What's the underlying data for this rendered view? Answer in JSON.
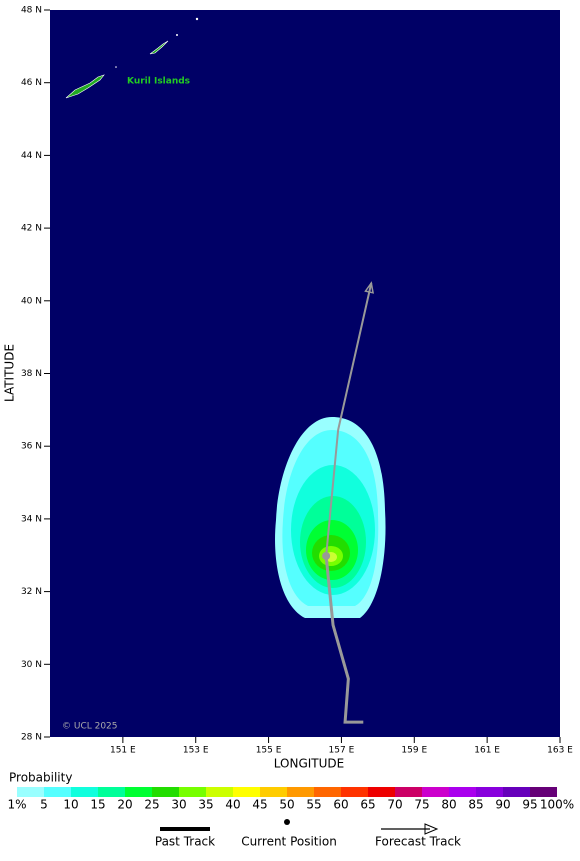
{
  "map": {
    "lon_range": [
      149,
      163
    ],
    "lat_range": [
      28,
      48
    ],
    "lat_ticks": [
      {
        "value": 28,
        "label": "28 N"
      },
      {
        "value": 30,
        "label": "30 N"
      },
      {
        "value": 32,
        "label": "32 N"
      },
      {
        "value": 34,
        "label": "34 N"
      },
      {
        "value": 36,
        "label": "36 N"
      },
      {
        "value": 38,
        "label": "38 N"
      },
      {
        "value": 40,
        "label": "40 N"
      },
      {
        "value": 42,
        "label": "42 N"
      },
      {
        "value": 44,
        "label": "44 N"
      },
      {
        "value": 46,
        "label": "46 N"
      },
      {
        "value": 48,
        "label": "48 N"
      }
    ],
    "lon_ticks": [
      {
        "value": 151,
        "label": "151 E"
      },
      {
        "value": 153,
        "label": "153 E"
      },
      {
        "value": 155,
        "label": "155 E"
      },
      {
        "value": 157,
        "label": "157 E"
      },
      {
        "value": 159,
        "label": "159 E"
      },
      {
        "value": 161,
        "label": "161 E"
      },
      {
        "value": 163,
        "label": "163 E"
      }
    ],
    "y_label": "LATITUDE",
    "x_label": "LONGITUDE",
    "place_label": "Kuril Islands",
    "credit": "© UCL 2025",
    "track": {
      "past": [
        [
          157.6,
          28.41
        ],
        [
          157.1,
          28.41
        ],
        [
          157.19,
          29.6
        ],
        [
          156.77,
          31.08
        ],
        [
          156.58,
          32.98
        ]
      ],
      "forecast": [
        [
          156.58,
          32.98
        ],
        [
          156.91,
          36.45
        ],
        [
          157.82,
          40.49
        ]
      ]
    }
  },
  "scale": {
    "title": "Probability",
    "labels": [
      "1%",
      "5",
      "10",
      "15",
      "20",
      "25",
      "30",
      "35",
      "40",
      "45",
      "50",
      "55",
      "60",
      "65",
      "70",
      "75",
      "80",
      "85",
      "90",
      "95",
      "100%"
    ],
    "colors": [
      "#99ffff",
      "#55ffff",
      "#11ffdd",
      "#00ff99",
      "#00ff33",
      "#22dd00",
      "#77ff00",
      "#ccff00",
      "#ffff00",
      "#ffcc00",
      "#ff9900",
      "#ff6600",
      "#ff3300",
      "#ee0000",
      "#cc0066",
      "#cc00cc",
      "#aa00ee",
      "#8800dd",
      "#6600bb",
      "#660077"
    ]
  },
  "legend": {
    "past": "Past Track",
    "current": "Current Position",
    "forecast": "Forecast Track"
  }
}
